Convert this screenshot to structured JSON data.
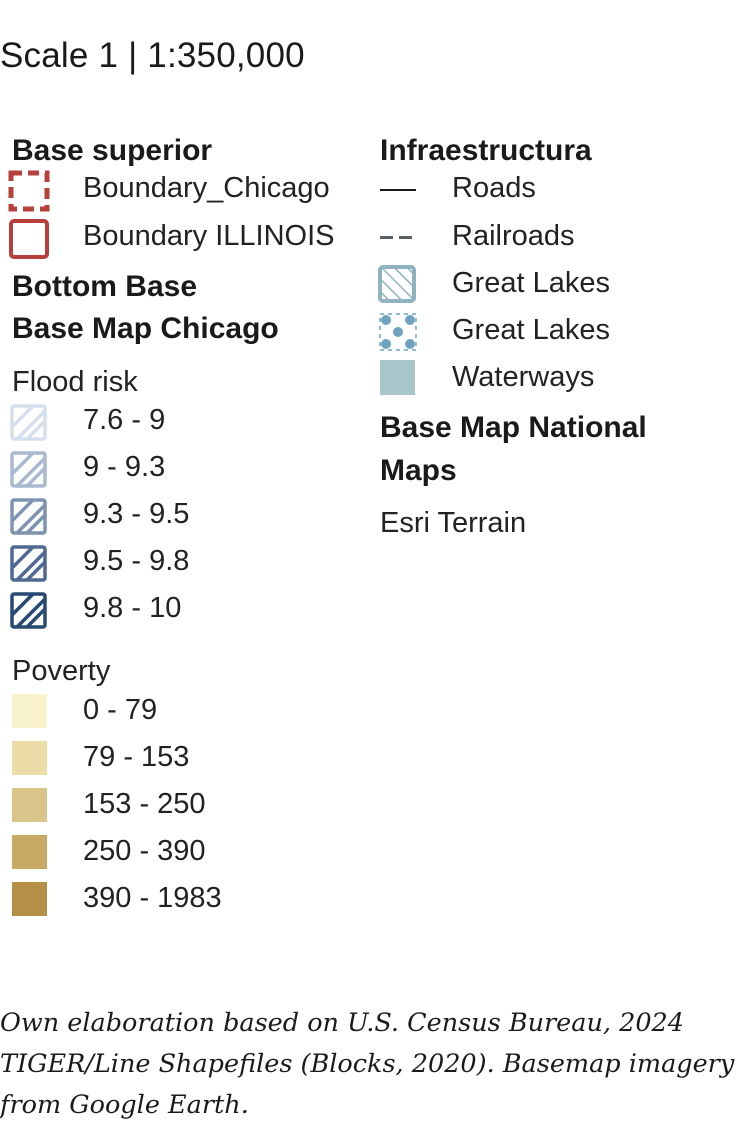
{
  "scale_title": "Scale 1 | 1:350,000",
  "base_superior": {
    "heading": "Base superior",
    "items": [
      {
        "label": "Boundary_Chicago",
        "color": "#b5403c",
        "style": "dashed"
      },
      {
        "label": "Boundary ILLINOIS",
        "color": "#b5403c",
        "style": "solid"
      }
    ]
  },
  "bottom_base": {
    "heading": "Bottom Base",
    "subheading": "Base Map Chicago"
  },
  "flood_risk": {
    "title": "Flood risk",
    "classes": [
      {
        "label": "7.6 - 9",
        "color": "#d5e0ee"
      },
      {
        "label": "9 - 9.3",
        "color": "#a9b9cf"
      },
      {
        "label": "9.3 - 9.5",
        "color": "#7d93b2"
      },
      {
        "label": "9.5 - 9.8",
        "color": "#4e6a92"
      },
      {
        "label": "9.8 - 10",
        "color": "#264a72"
      }
    ]
  },
  "poverty": {
    "title": "Poverty",
    "classes": [
      {
        "label": "0 - 79",
        "color": "#f9f3cb"
      },
      {
        "label": "79 - 153",
        "color": "#ebdca8"
      },
      {
        "label": "153 - 250",
        "color": "#d9c489"
      },
      {
        "label": "250 - 390",
        "color": "#c8aa66"
      },
      {
        "label": "390 - 1983",
        "color": "#b48f45"
      }
    ]
  },
  "infraestructura": {
    "heading": "Infraestructura",
    "items": [
      {
        "label": "Roads",
        "symbol": "solid-line",
        "color": "#1a1a1a"
      },
      {
        "label": "Railroads",
        "symbol": "dashed-line",
        "color": "#5a6066"
      },
      {
        "label": "Great Lakes",
        "symbol": "hatched-square",
        "color": "#8fb4c0"
      },
      {
        "label": "Great Lakes",
        "symbol": "dotted-square",
        "color": "#6fa3bf"
      },
      {
        "label": "Waterways",
        "symbol": "filled-square",
        "color": "#a7c6cc"
      }
    ]
  },
  "base_map_national": {
    "heading_line1": "Base Map National",
    "heading_line2": "Maps",
    "layer": "Esri Terrain"
  },
  "source_note": "Own elaboration based on U.S. Census Bureau, 2024 TIGER/Line Shapefiles (Blocks, 2020). Basemap imagery from Google Earth."
}
